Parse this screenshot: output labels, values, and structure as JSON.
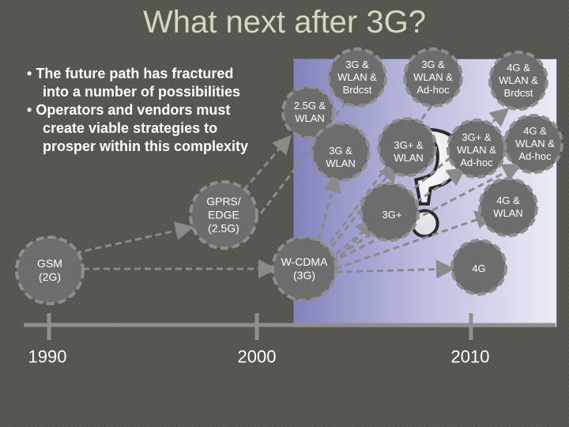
{
  "slide": {
    "title": "What next after 3G?",
    "bullets": [
      {
        "line1": "The future path has fractured",
        "line2": "into a number of possibilities"
      },
      {
        "line1": "Operators and vendors must",
        "line2": "create viable strategies to",
        "line3": "prosper within this complexity"
      }
    ],
    "bullet_marker": "•"
  },
  "timeline": {
    "years": [
      "1990",
      "2000",
      "2010"
    ]
  },
  "nodes": {
    "gsm": {
      "line1": "GSM",
      "line2": "(2G)"
    },
    "gprs": {
      "line1": "GPRS/",
      "line2": "EDGE",
      "line3": "(2.5G)"
    },
    "wcdma": {
      "line1": "W-CDMA",
      "line2": "(3G)"
    },
    "wlan25": {
      "line1": "2.5G &",
      "line2": "WLAN"
    },
    "g3wlan": {
      "line1": "3G &",
      "line2": "WLAN"
    },
    "g3wlanbrdcst": {
      "line1": "3G &",
      "line2": "WLAN &",
      "line3": "Brdcst"
    },
    "g3wlanadhoc": {
      "line1": "3G &",
      "line2": "WLAN &",
      "line3": "Ad-hoc"
    },
    "g4wlanbrdcst": {
      "line1": "4G &",
      "line2": "WLAN &",
      "line3": "Brdcst"
    },
    "g3pluswlan": {
      "line1": "3G+ &",
      "line2": "WLAN"
    },
    "g3pluswlanadhoc": {
      "line1": "3G+ &",
      "line2": "WLAN &",
      "line3": "Ad-hoc"
    },
    "g4wlanadhoc": {
      "line1": "4G &",
      "line2": "WLAN &",
      "line3": "Ad-hoc"
    },
    "g3plus": {
      "line1": "3G+"
    },
    "g4wlan": {
      "line1": "4G &",
      "line2": "WLAN"
    },
    "g4": {
      "line1": "4G"
    }
  },
  "question_mark": "?",
  "colors": {
    "title": "#d8d6bf",
    "circle_fill": "#6d6d6d",
    "circle_stroke": "#8e8e8e",
    "arrow": "#8a8a8a",
    "timeline": "#8f8f8f"
  }
}
